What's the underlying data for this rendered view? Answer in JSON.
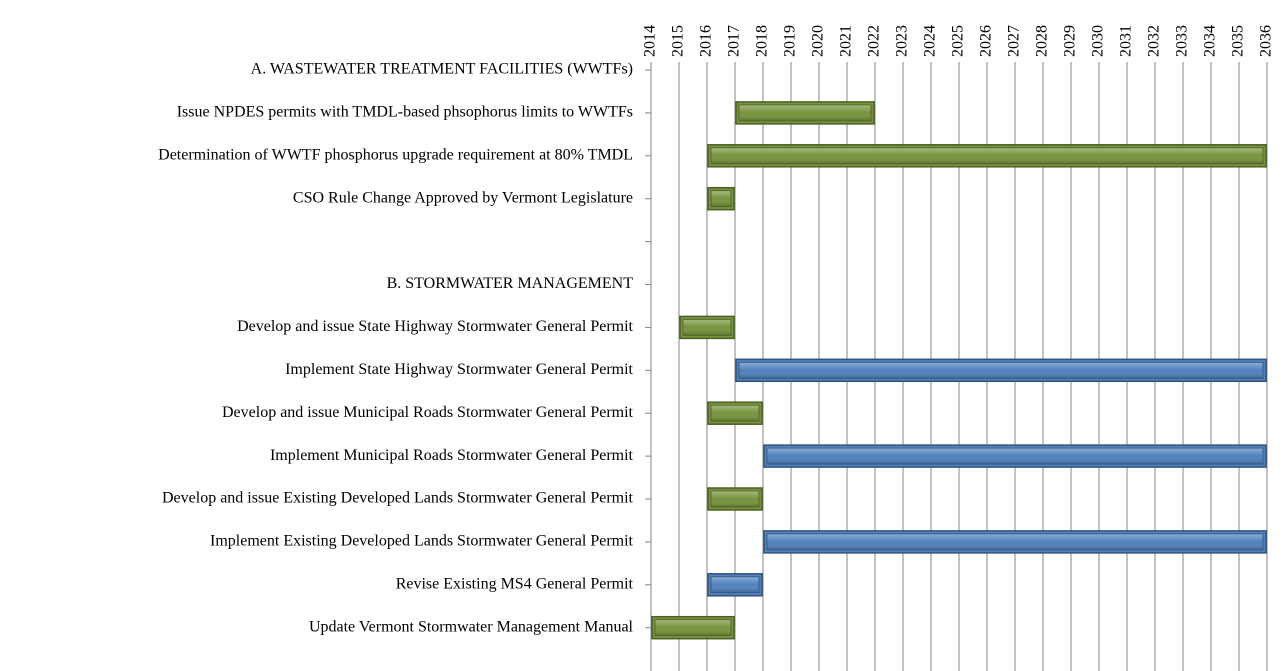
{
  "chart_data": {
    "type": "gantt",
    "categories": [
      "A. WASTEWATER TREATMENT FACILITIES (WWTFs)",
      "Issue NPDES permits with TMDL-based phsophorus limits to WWTFs",
      "Determination of WWTF phosphorus upgrade requirement at 80% TMDL",
      "CSO Rule Change Approved by Vermont Legislature",
      null,
      "B. STORMWATER MANAGEMENT",
      "Develop and issue State Highway Stormwater General Permit",
      "Implement State Highway Stormwater General Permit",
      "Develop and issue Municipal Roads Stormwater General Permit",
      "Implement Municipal Roads Stormwater General Permit",
      "Develop and issue Existing Developed Lands Stormwater General Permit",
      "Implement Existing Developed Lands Stormwater General Permit",
      "Revise Existing MS4 General Permit",
      "Update Vermont Stormwater Management Manual"
    ],
    "start": [
      null,
      2017,
      2016,
      2016,
      null,
      null,
      2015,
      2017,
      2016,
      2018,
      2016,
      2018,
      2016,
      2014
    ],
    "end": [
      null,
      2022,
      2036,
      2017,
      null,
      null,
      2017,
      2036,
      2018,
      2036,
      2018,
      2036,
      2018,
      2017
    ],
    "colors": [
      null,
      "#77933c",
      "#77933c",
      "#77933c",
      null,
      null,
      "#77933c",
      "#4f81bd",
      "#77933c",
      "#4f81bd",
      "#77933c",
      "#4f81bd",
      "#4f81bd",
      "#77933c"
    ],
    "xlim": [
      2014,
      2036
    ],
    "xticks": [
      2014,
      2015,
      2016,
      2017,
      2018,
      2019,
      2020,
      2021,
      2022,
      2023,
      2024,
      2025,
      2026,
      2027,
      2028,
      2029,
      2030,
      2031,
      2032,
      2033,
      2034,
      2035,
      2036
    ],
    "grid": true
  }
}
